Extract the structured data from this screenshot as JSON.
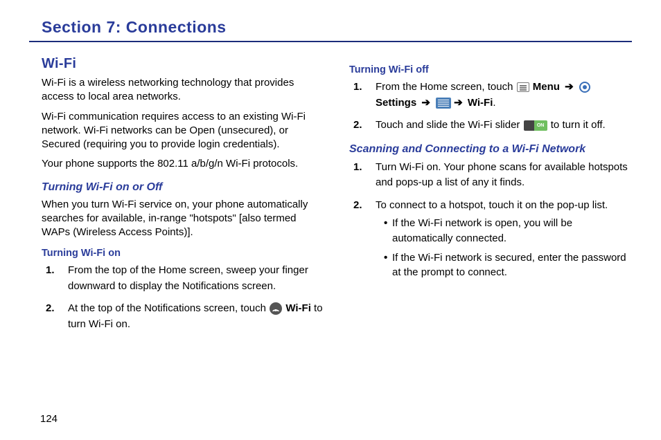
{
  "page_number": "124",
  "section_title": "Section 7: Connections",
  "colors": {
    "heading": "#2a3c9a",
    "rule": "#1b2c7a",
    "body_text": "#000000",
    "background": "#ffffff",
    "slider_on": "#6fbf5f"
  },
  "left": {
    "h2": "Wi-Fi",
    "p1": "Wi-Fi is a wireless networking technology that provides access to local area networks.",
    "p2": "Wi-Fi communication requires access to an existing Wi-Fi network. Wi-Fi networks can be Open (unsecured), or Secured (requiring you to provide login credentials).",
    "p3": "Your phone supports the 802.11 a/b/g/n Wi-Fi protocols.",
    "h3": "Turning Wi-Fi on or Off",
    "p4": "When you turn Wi-Fi service on, your phone automatically searches for available, in-range \"hotspots\" [also termed WAPs (Wireless Access Points)].",
    "h4": "Turning Wi-Fi on",
    "step1": "From the top of the Home screen, sweep your finger downward to display the Notifications screen.",
    "step2a": "At the top of the Notifications screen, touch ",
    "step2_wifi": " Wi-Fi",
    "step2b": " to turn Wi-Fi on."
  },
  "right": {
    "h4": "Turning Wi-Fi off",
    "step1a": "From the Home screen, touch ",
    "menu": " Menu ",
    "settings": " Settings ",
    "wifi": " Wi-Fi",
    "period": ".",
    "step2a": "Touch and slide the Wi-Fi slider ",
    "step2b": " to turn it off.",
    "h3": "Scanning and Connecting to a Wi-Fi Network",
    "scan_step1": "Turn Wi-Fi on. Your phone scans for available hotspots and pops-up a list of any it finds.",
    "scan_step2": "To connect to a hotspot, touch it on the pop-up list.",
    "bullet1": "If the Wi-Fi network is open, you will be automatically connected.",
    "bullet2": "If the Wi-Fi network is secured, enter the password at the prompt to connect.",
    "arrow": "➔",
    "slider_label": "ON"
  }
}
